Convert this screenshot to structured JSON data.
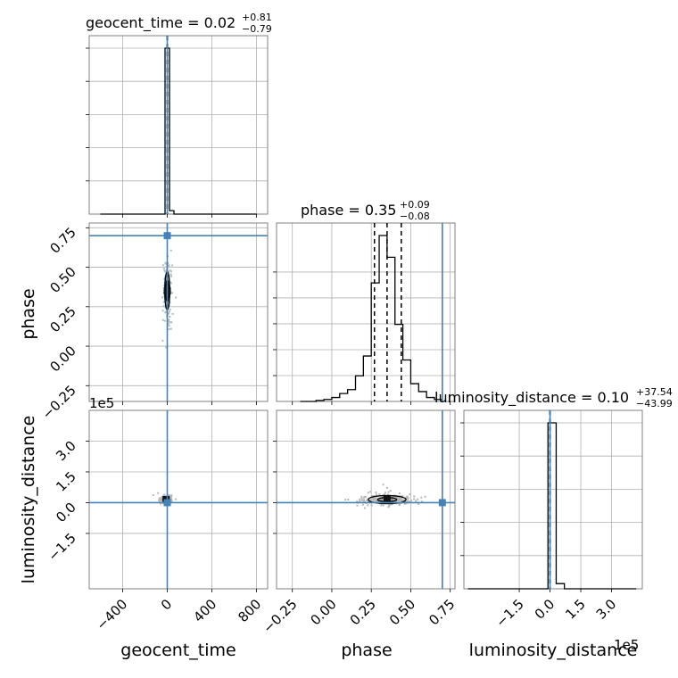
{
  "chart_data": {
    "type": "corner",
    "parameters": [
      "geocent_time",
      "phase",
      "luminosity_distance"
    ],
    "truths": {
      "geocent_time": 0,
      "phase": 0.7,
      "luminosity_distance": 0
    },
    "colors": {
      "truth": "#4682b4",
      "hist": "#000000",
      "grid": "#b0b0b0",
      "frame": "#808080",
      "samples": "#b8b8b8"
    },
    "grid": true,
    "titles": {
      "geocent_time": {
        "label": "geocent_time = 0.02",
        "plus": "+0.81",
        "minus": "−0.79"
      },
      "phase": {
        "label": "phase = 0.35",
        "plus": "+0.09",
        "minus": "−0.08"
      },
      "luminosity_distance": {
        "label": "luminosity_distance = 0.10",
        "plus": "+37.54",
        "minus": "−43.99"
      }
    },
    "axes": {
      "geocent_time": {
        "xlabel": "geocent_time",
        "lim": [
          -700,
          900
        ],
        "ticks": [
          -400,
          0,
          400,
          800
        ],
        "tick_labels": [
          "−400",
          "0",
          "400",
          "800"
        ]
      },
      "phase": {
        "xlabel": "phase",
        "ylabel": "phase",
        "lim": [
          -0.35,
          0.78
        ],
        "ticks": [
          -0.25,
          0.0,
          0.25,
          0.5,
          0.75
        ],
        "tick_labels": [
          "−0.25",
          "0.00",
          "0.25",
          "0.50",
          "0.75"
        ]
      },
      "luminosity_distance": {
        "xlabel": "luminosity_distance",
        "ylabel": "luminosity_distance",
        "lim": [
          -4.2,
          4.5
        ],
        "ticks": [
          -1.5,
          0.0,
          1.5,
          3.0
        ],
        "tick_labels": [
          "−1.5",
          "0.0",
          "1.5",
          "3.0"
        ],
        "offset_text": "1e5"
      }
    },
    "histograms": {
      "geocent_time": {
        "edges": [
          -600,
          -500,
          -400,
          -300,
          -200,
          -100,
          -60,
          -20,
          20,
          60,
          100,
          200,
          300,
          400,
          500,
          600,
          700,
          800
        ],
        "heights": [
          0,
          0,
          0,
          0,
          0,
          0,
          0,
          0.96,
          0.02,
          0,
          0,
          0,
          0,
          0,
          0,
          0,
          0
        ],
        "quantile_lines": [
          -0.77,
          0.02,
          0.83
        ]
      },
      "phase": {
        "edges": [
          -0.2,
          -0.15,
          -0.1,
          -0.05,
          0.0,
          0.05,
          0.1,
          0.15,
          0.2,
          0.25,
          0.3,
          0.35,
          0.4,
          0.45,
          0.5,
          0.55,
          0.6,
          0.65,
          0.7
        ],
        "heights": [
          0,
          0,
          0.5,
          1,
          2,
          4,
          6,
          13,
          23,
          60,
          84,
          73,
          39,
          21,
          9,
          5,
          2,
          1
        ],
        "quantile_lines": [
          0.27,
          0.35,
          0.44
        ]
      },
      "luminosity_distance": {
        "edges": [
          -4.0,
          -3.5,
          -3.0,
          -2.5,
          -2.0,
          -1.5,
          -1.0,
          -0.5,
          -0.1,
          0.3,
          0.7,
          1.2,
          1.7,
          2.2,
          2.7,
          3.2,
          3.7,
          4.2
        ],
        "heights": [
          0,
          0,
          0,
          0,
          0,
          0,
          0,
          0,
          0.96,
          0.03,
          0,
          0,
          0,
          0,
          0,
          0,
          0
        ],
        "quantile_lines": [
          -0.0004,
          1e-06,
          0.0004
        ]
      }
    },
    "contours": {
      "phase_vs_geocent_time": {
        "x_center": 0,
        "y_center": 0.35,
        "x_halfwidths": [
          12,
          22
        ],
        "y_halfwidths": [
          0.07,
          0.12
        ]
      },
      "luminosity_distance_vs_geocent_time": {
        "x_center": -10,
        "y_center": 0.15,
        "x_halfwidths": [
          20,
          30
        ],
        "y_halfwidths": [
          0.05,
          0.1
        ]
      },
      "luminosity_distance_vs_phase": {
        "x_center": 0.35,
        "y_center": 0.15,
        "x_halfwidths": [
          0.06,
          0.12
        ],
        "y_halfwidths": [
          0.1,
          0.2
        ]
      }
    }
  }
}
